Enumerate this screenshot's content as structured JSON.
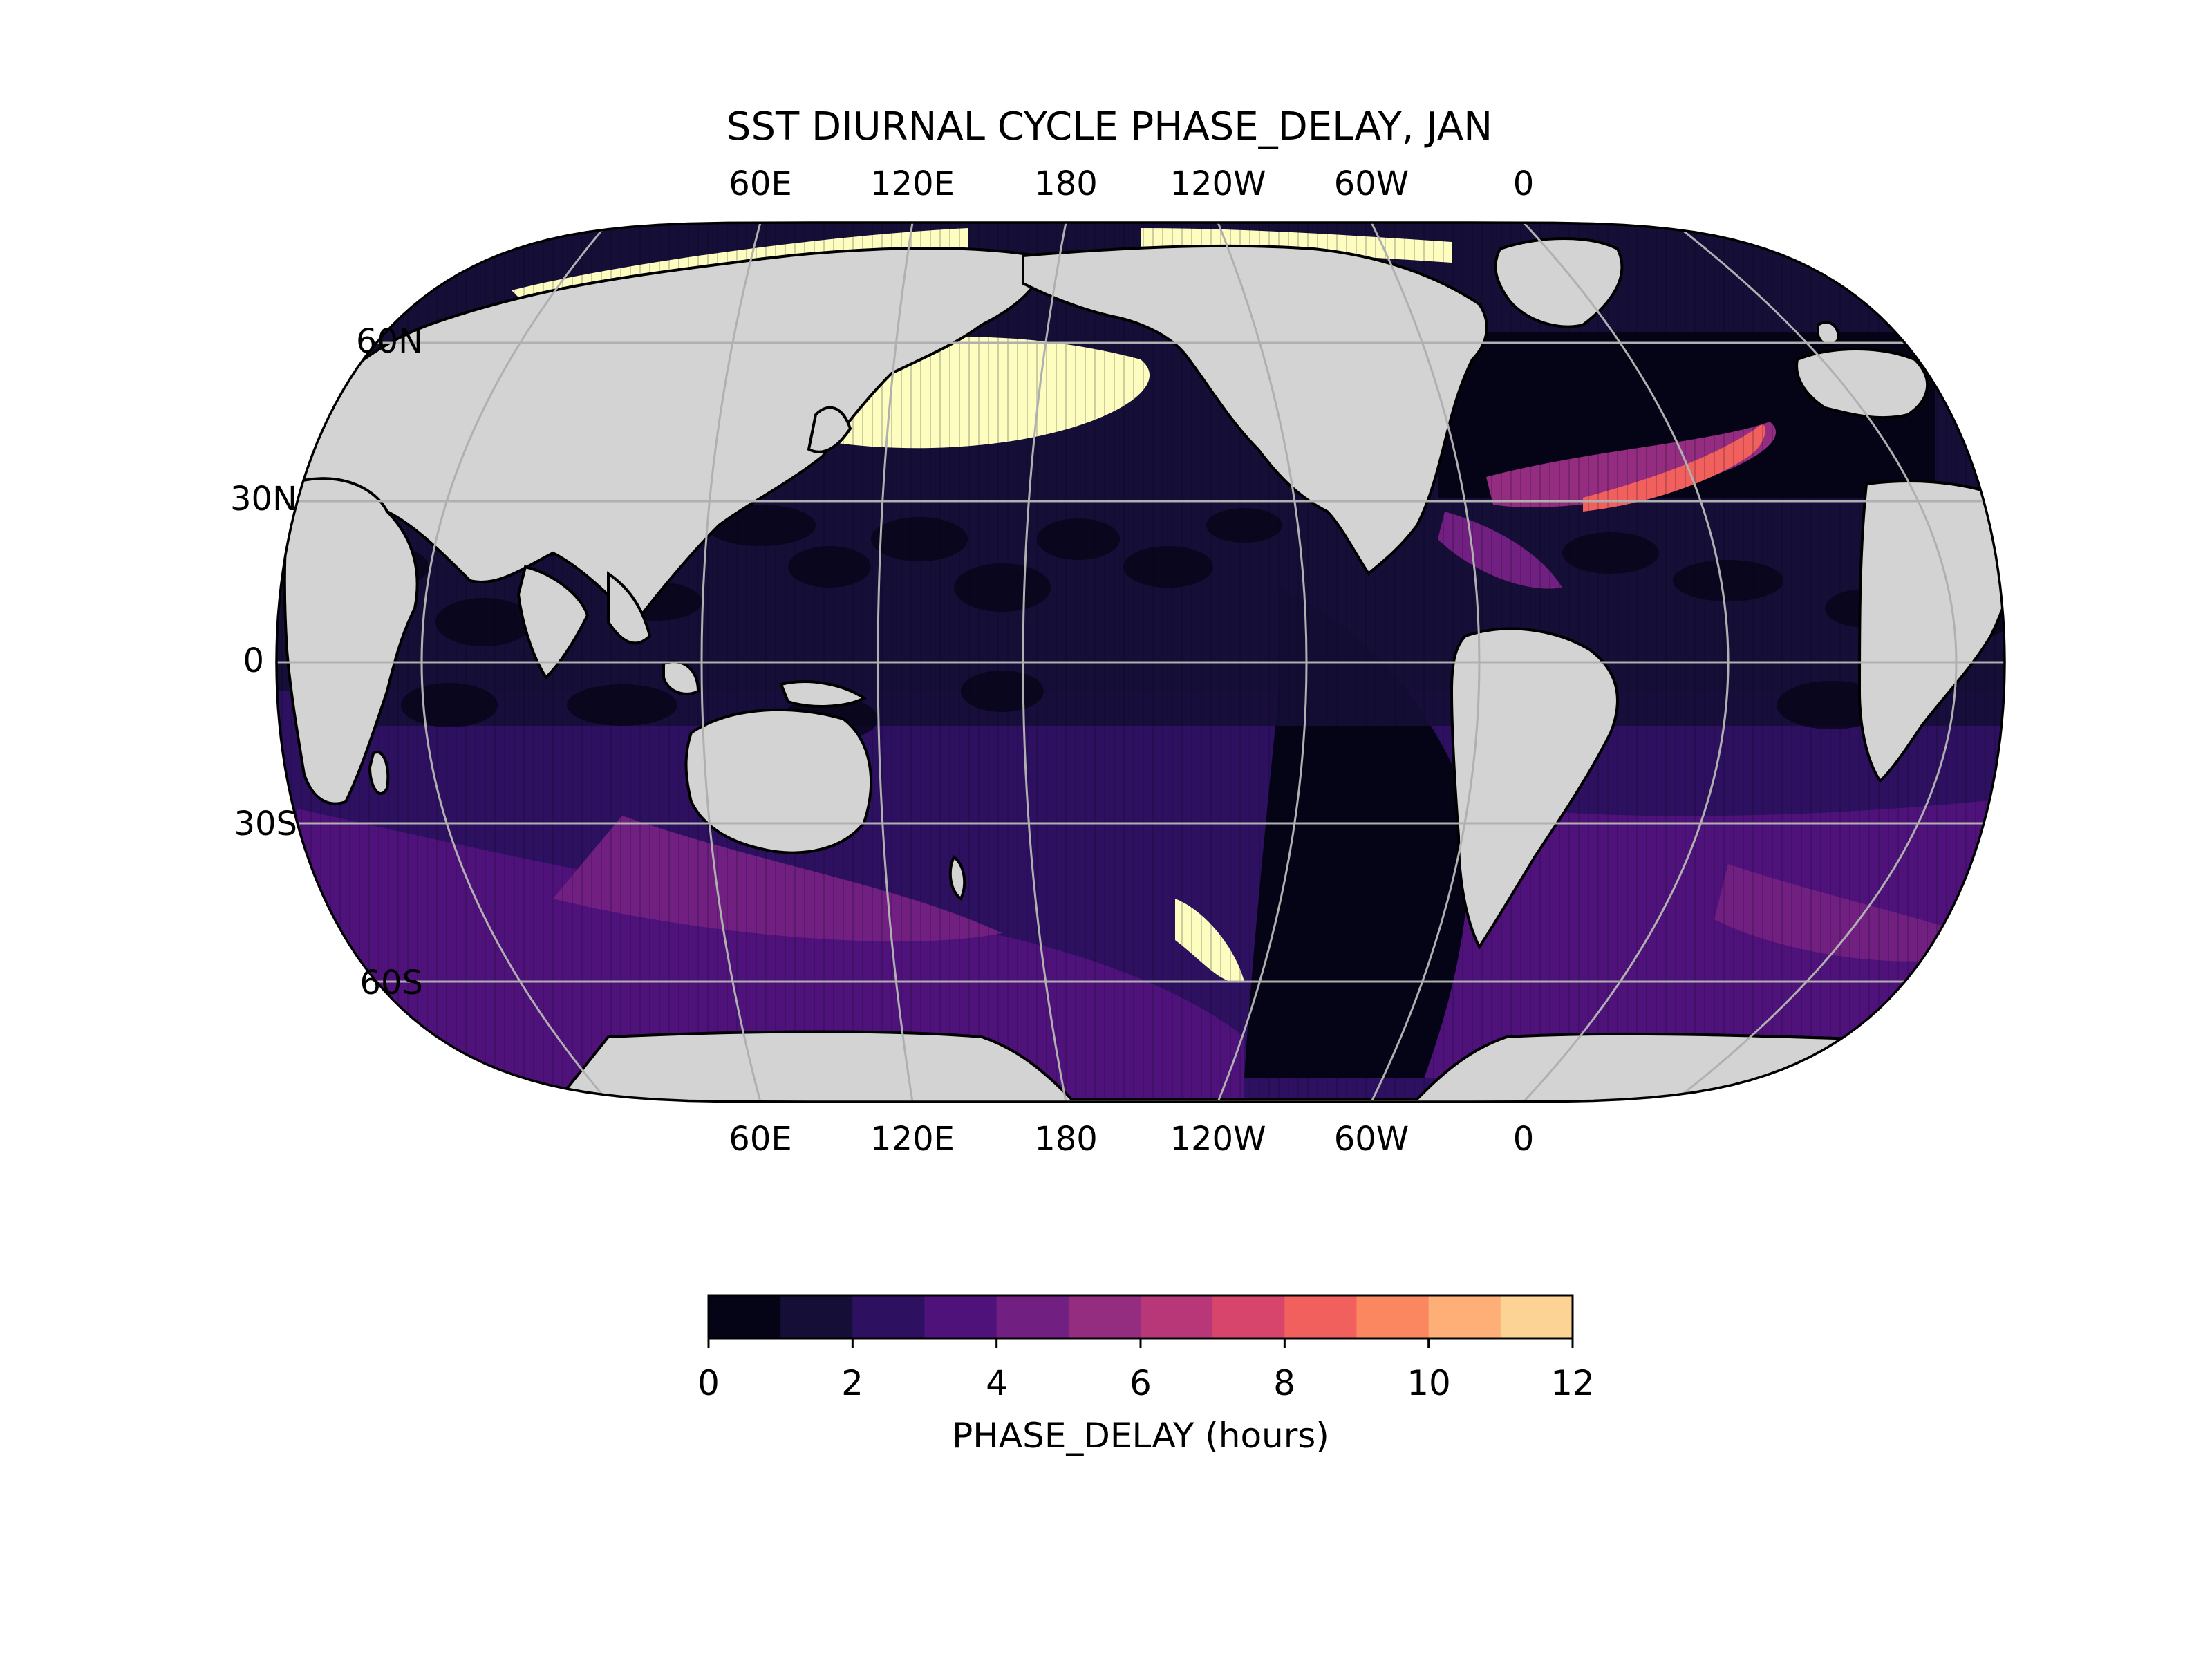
{
  "figure": {
    "title": "SST DIURNAL CYCLE PHASE_DELAY, JAN"
  },
  "map": {
    "projection": "Robinson-like (central longitude 180)",
    "land_color": "#d3d3d3",
    "coastline_color": "#000000",
    "gridline_color": "#b0b0b0",
    "top_lon_labels": [
      "60E",
      "120E",
      "180",
      "120W",
      "60W",
      "0"
    ],
    "bottom_lon_labels": [
      "60E",
      "120E",
      "180",
      "120W",
      "60W",
      "0"
    ],
    "lat_labels": [
      "60N",
      "30N",
      "0",
      "30S",
      "60S"
    ]
  },
  "colorbar": {
    "label": "PHASE_DELAY (hours)",
    "tick_labels": [
      "0",
      "2",
      "4",
      "6",
      "8",
      "10",
      "12"
    ],
    "colors": [
      "#050416",
      "#150e37",
      "#2d1160",
      "#4f127b",
      "#711f81",
      "#942c80",
      "#b73779",
      "#d8456c",
      "#f1605d",
      "#fb8761",
      "#feaf77",
      "#fdd295",
      "#fcfdbf"
    ]
  },
  "chart_data": {
    "type": "heatmap",
    "title": "SST DIURNAL CYCLE PHASE_DELAY, JAN",
    "colorbar_label": "PHASE_DELAY (hours)",
    "color_range": [
      0,
      12
    ],
    "color_levels": [
      0,
      1,
      2,
      3,
      4,
      5,
      6,
      7,
      8,
      9,
      10,
      11,
      12
    ],
    "colormap": "magma",
    "approx_regions": [
      {
        "region": "North Pacific (north of ~35N)",
        "value_hours": 12
      },
      {
        "region": "Gulf Stream band (N Atlantic)",
        "value_hours": 7.5
      },
      {
        "region": "Tropical oceans",
        "value_hours": 1.5
      },
      {
        "region": "Southern Ocean",
        "value_hours": 3
      },
      {
        "region": "Southeast Pacific",
        "value_hours": 0.5
      },
      {
        "region": "Arctic coastal waters",
        "value_hours": 12
      }
    ]
  }
}
